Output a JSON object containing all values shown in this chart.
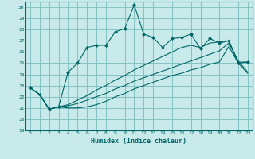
{
  "xlabel": "Humidex (Indice chaleur)",
  "ylabel": "",
  "bg_color": "#c8eaea",
  "grid_color": "#7bbcbc",
  "line_color": "#006666",
  "xlim": [
    -0.5,
    23.5
  ],
  "ylim": [
    19,
    30.5
  ],
  "yticks": [
    19,
    20,
    21,
    22,
    23,
    24,
    25,
    26,
    27,
    28,
    29,
    30
  ],
  "xticks": [
    0,
    1,
    2,
    3,
    4,
    5,
    6,
    7,
    8,
    9,
    10,
    11,
    12,
    13,
    14,
    15,
    16,
    17,
    18,
    19,
    20,
    21,
    22,
    23
  ],
  "main_line": [
    22.8,
    22.2,
    20.9,
    21.1,
    24.2,
    25.0,
    26.4,
    26.6,
    26.6,
    27.8,
    28.1,
    30.2,
    27.6,
    27.3,
    26.4,
    27.2,
    27.3,
    27.6,
    26.3,
    27.2,
    26.8,
    27.0,
    25.0,
    25.1
  ],
  "line2": [
    22.8,
    22.2,
    20.9,
    21.1,
    21.0,
    21.0,
    21.1,
    21.3,
    21.6,
    22.0,
    22.3,
    22.7,
    23.0,
    23.3,
    23.6,
    23.9,
    24.1,
    24.4,
    24.6,
    24.9,
    25.1,
    26.5,
    25.0,
    24.1
  ],
  "line3": [
    22.8,
    22.2,
    20.9,
    21.1,
    21.2,
    21.4,
    21.7,
    22.0,
    22.3,
    22.7,
    23.0,
    23.4,
    23.7,
    24.0,
    24.3,
    24.6,
    24.9,
    25.2,
    25.5,
    25.8,
    26.1,
    26.8,
    25.2,
    24.2
  ],
  "line4": [
    22.8,
    22.2,
    20.9,
    21.1,
    21.3,
    21.7,
    22.1,
    22.6,
    23.0,
    23.5,
    23.9,
    24.4,
    24.8,
    25.2,
    25.6,
    26.0,
    26.4,
    26.6,
    26.4,
    26.8,
    26.9,
    27.0,
    25.1,
    25.1
  ]
}
